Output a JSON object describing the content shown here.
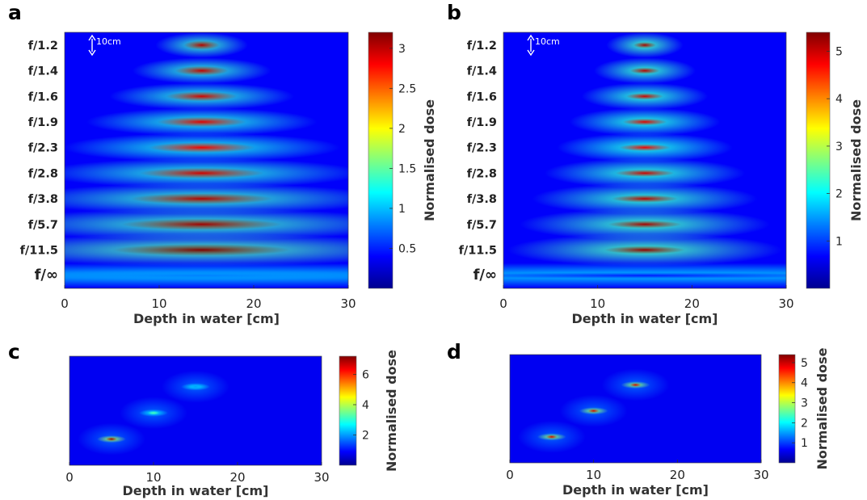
{
  "panel_letters": [
    "a",
    "b",
    "c",
    "d"
  ],
  "colormap": [
    "#00008f",
    "#0000ff",
    "#0080ff",
    "#00ffff",
    "#80ff80",
    "#ffff00",
    "#ff8000",
    "#ff0000",
    "#800000"
  ],
  "chart_data": [
    {
      "type": "heatmap",
      "panel": "a",
      "xlabel": "Depth in water [cm]",
      "xlim": [
        0,
        30
      ],
      "xticks": [
        "0",
        "10",
        "20",
        "30"
      ],
      "rows": [
        "f/1.2",
        "f/1.4",
        "f/1.6",
        "f/1.9",
        "f/2.3",
        "f/2.8",
        "f/3.8",
        "f/5.7",
        "f/11.5",
        "f/∞"
      ],
      "focus_depth_cm": 14.5,
      "peak_dose": [
        3.05,
        3.0,
        2.95,
        2.9,
        2.85,
        2.95,
        3.05,
        3.1,
        3.2,
        0.8
      ],
      "colorbar": {
        "label": "Normalised dose",
        "ticks": [
          "0.5",
          "1",
          "1.5",
          "2",
          "2.5",
          "3"
        ],
        "tick_values": [
          0.5,
          1,
          1.5,
          2,
          2.5,
          3
        ],
        "range": [
          0,
          3.2
        ]
      },
      "annotation": "10cm"
    },
    {
      "type": "heatmap",
      "panel": "b",
      "xlabel": "Depth in water [cm]",
      "xlim": [
        0,
        30
      ],
      "xticks": [
        "0",
        "10",
        "20",
        "30"
      ],
      "rows": [
        "f/1.2",
        "f/1.4",
        "f/1.6",
        "f/1.9",
        "f/2.3",
        "f/2.8",
        "f/3.8",
        "f/5.7",
        "f/11.5",
        "f/∞"
      ],
      "focus_depth_cm": 15,
      "peak_dose": [
        5.2,
        5.1,
        5.0,
        4.9,
        4.8,
        5.0,
        5.1,
        5.2,
        5.3,
        0.8
      ],
      "colorbar": {
        "label": "Normalised dose",
        "ticks": [
          "1",
          "2",
          "3",
          "4",
          "5"
        ],
        "tick_values": [
          1,
          2,
          3,
          4,
          5
        ],
        "range": [
          0,
          5.4
        ]
      },
      "annotation": "10cm"
    },
    {
      "type": "heatmap",
      "panel": "c",
      "xlabel": "Depth in water [cm]",
      "xlim": [
        0,
        30
      ],
      "xticks": [
        "0",
        "10",
        "20",
        "30"
      ],
      "foci": [
        {
          "depth_cm": 5,
          "peak_dose": 7.0
        },
        {
          "depth_cm": 10,
          "peak_dose": 3.2
        },
        {
          "depth_cm": 15,
          "peak_dose": 2.0
        }
      ],
      "colorbar": {
        "label": "Normalised dose",
        "ticks": [
          "2",
          "4",
          "6"
        ],
        "tick_values": [
          2,
          4,
          6
        ],
        "range": [
          0,
          7.2
        ]
      }
    },
    {
      "type": "heatmap",
      "panel": "d",
      "xlabel": "Depth in water [cm]",
      "xlim": [
        0,
        30
      ],
      "xticks": [
        "0",
        "10",
        "20",
        "30"
      ],
      "foci": [
        {
          "depth_cm": 5,
          "peak_dose": 5.0
        },
        {
          "depth_cm": 10,
          "peak_dose": 5.0
        },
        {
          "depth_cm": 15,
          "peak_dose": 5.0
        }
      ],
      "colorbar": {
        "label": "Normalised dose",
        "ticks": [
          "1",
          "2",
          "3",
          "4",
          "5"
        ],
        "tick_values": [
          1,
          2,
          3,
          4,
          5
        ],
        "range": [
          0,
          5.4
        ]
      }
    }
  ]
}
